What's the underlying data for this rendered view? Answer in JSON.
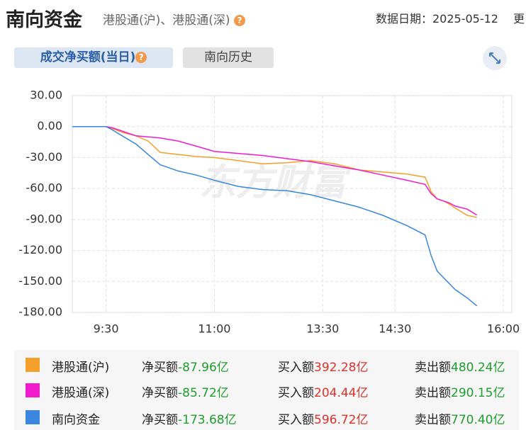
{
  "header": {
    "title": "南向资金",
    "subtitle": "港股通(沪)、港股通(深)",
    "date": "数据日期：2025-05-12",
    "more": "更"
  },
  "tabs": [
    "成交净买额(当日)",
    "南向历史"
  ],
  "chart_data": {
    "type": "line",
    "watermark": "东方财富",
    "x": [
      2,
      30,
      35,
      45,
      55,
      65,
      75,
      90,
      105,
      120,
      140,
      160,
      180,
      200,
      220,
      240,
      260,
      280,
      295,
      300,
      305,
      310,
      315,
      320,
      330,
      338
    ],
    "xlim": [
      2,
      367
    ],
    "xticks": [
      {
        "value": 30,
        "label": "9:30"
      },
      {
        "value": 120,
        "label": "11:00"
      },
      {
        "value": 210,
        "label": "13:30"
      },
      {
        "value": 270,
        "label": "14:30"
      },
      {
        "value": 360,
        "label": "16:00"
      }
    ],
    "ylim": [
      -180,
      30
    ],
    "yticks": [
      {
        "value": 30,
        "label": "30.00"
      },
      {
        "value": 0,
        "label": "0.00"
      },
      {
        "value": -30,
        "label": "-30.00"
      },
      {
        "value": -60,
        "label": "-60.00"
      },
      {
        "value": -90,
        "label": "-90.00"
      },
      {
        "value": -120,
        "label": "-120.00"
      },
      {
        "value": -150,
        "label": "-150.00"
      },
      {
        "value": -180,
        "label": "-180.00"
      }
    ],
    "grid": true,
    "series": [
      {
        "name": "港股通(沪)",
        "color": "#f5a02a",
        "values": [
          0,
          0,
          -2,
          -6,
          -9,
          -14,
          -25,
          -27,
          -29,
          -30,
          -33,
          -36,
          -35,
          -33,
          -36,
          -42,
          -44,
          -46,
          -49,
          -63,
          -70,
          -72,
          -75,
          -79,
          -86,
          -87.96
        ]
      },
      {
        "name": "港股通(深)",
        "color": "#f01ccc",
        "values": [
          0,
          0,
          -1,
          -5,
          -9,
          -10,
          -11,
          -14,
          -19,
          -24,
          -26,
          -28,
          -31,
          -34,
          -38,
          -42,
          -47,
          -52,
          -56,
          -65,
          -70,
          -72,
          -74,
          -77,
          -80,
          -85.72
        ]
      },
      {
        "name": "南向资金",
        "color": "#3a86e0",
        "values": [
          0,
          0,
          -3,
          -10,
          -17,
          -27,
          -37,
          -43,
          -47,
          -52,
          -58,
          -61,
          -62,
          -66,
          -72,
          -78,
          -86,
          -96,
          -105,
          -125,
          -140,
          -146,
          -152,
          -158,
          -166,
          -173.68
        ]
      }
    ]
  },
  "summary": {
    "rows": [
      {
        "net_label": "净买额",
        "net": "-87.96亿",
        "buy_label": "买入额",
        "buy": "392.28亿",
        "sell_label": "卖出额",
        "sell": "480.24亿"
      },
      {
        "net_label": "净买额",
        "net": "-85.72亿",
        "buy_label": "买入额",
        "buy": "204.44亿",
        "sell_label": "卖出额",
        "sell": "290.15亿"
      },
      {
        "net_label": "净买额",
        "net": "-173.68亿",
        "buy_label": "买入额",
        "buy": "596.72亿",
        "sell_label": "卖出额",
        "sell": "770.40亿"
      }
    ]
  }
}
